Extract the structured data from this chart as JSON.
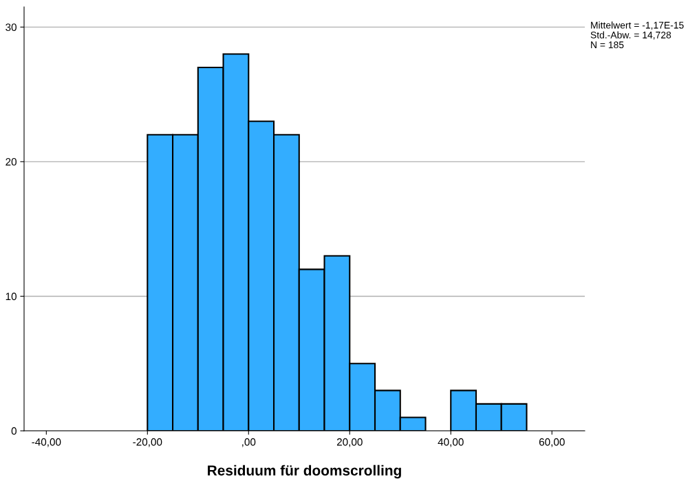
{
  "chart_data": {
    "type": "histogram",
    "xlabel": "Residuum für doomscrolling",
    "bins": [
      -20,
      -15,
      -10,
      -5,
      0,
      5,
      10,
      15,
      20,
      25,
      30,
      35,
      40,
      45,
      50,
      55
    ],
    "values": [
      22,
      22,
      27,
      28,
      23,
      22,
      12,
      13,
      5,
      3,
      1,
      0,
      3,
      2,
      2
    ],
    "color": "#33adff",
    "xlim": [
      -44.4,
      66.5
    ],
    "xticks": [
      {
        "value": -40,
        "label": "-40,00"
      },
      {
        "value": -20,
        "label": "-20,00"
      },
      {
        "value": 0,
        "label": ",00"
      },
      {
        "value": 20,
        "label": "20,00"
      },
      {
        "value": 40,
        "label": "40,00"
      },
      {
        "value": 60,
        "label": "60,00"
      }
    ],
    "ylim": [
      0,
      31.5
    ],
    "yticks": [
      0,
      10,
      20,
      30
    ],
    "grid": "y",
    "annotations": [
      "Mittelwert = -1,17E-15",
      "Std.-Abw. = 14,728",
      "N = 185"
    ]
  }
}
